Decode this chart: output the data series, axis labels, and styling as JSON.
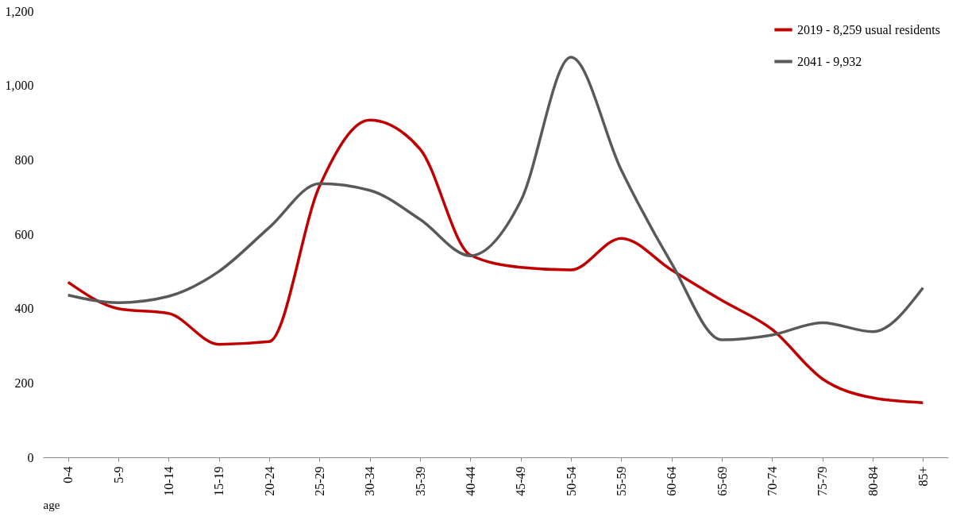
{
  "chart_data": {
    "type": "line",
    "xlabel": "age",
    "categories": [
      "0-4",
      "5-9",
      "10-14",
      "15-19",
      "20-24",
      "25-29",
      "30-34",
      "35-39",
      "40-44",
      "45-49",
      "50-54",
      "55-59",
      "60-64",
      "65-69",
      "70-74",
      "75-79",
      "80-84",
      "85+"
    ],
    "series": [
      {
        "name": "2019 - 8,259 usual residents",
        "color": "#c00000",
        "values": [
          471,
          400,
          387,
          304,
          311,
          729,
          907,
          829,
          544,
          511,
          504,
          589,
          504,
          422,
          344,
          211,
          160,
          147
        ]
      },
      {
        "name": "2041 - 9,932",
        "color": "#595959",
        "values": [
          436,
          416,
          433,
          500,
          618,
          736,
          718,
          640,
          542,
          689,
          1076,
          773,
          522,
          316,
          329,
          362,
          338,
          456
        ]
      }
    ],
    "ylim": [
      0,
      1200
    ],
    "yticks": [
      0,
      200,
      400,
      600,
      800,
      {
        "value": 1000,
        "label": "1,000"
      },
      {
        "value": 1200,
        "label": "1,200"
      }
    ],
    "grid": false,
    "legend": "top right",
    "marker": "none",
    "line_style": "solid"
  }
}
